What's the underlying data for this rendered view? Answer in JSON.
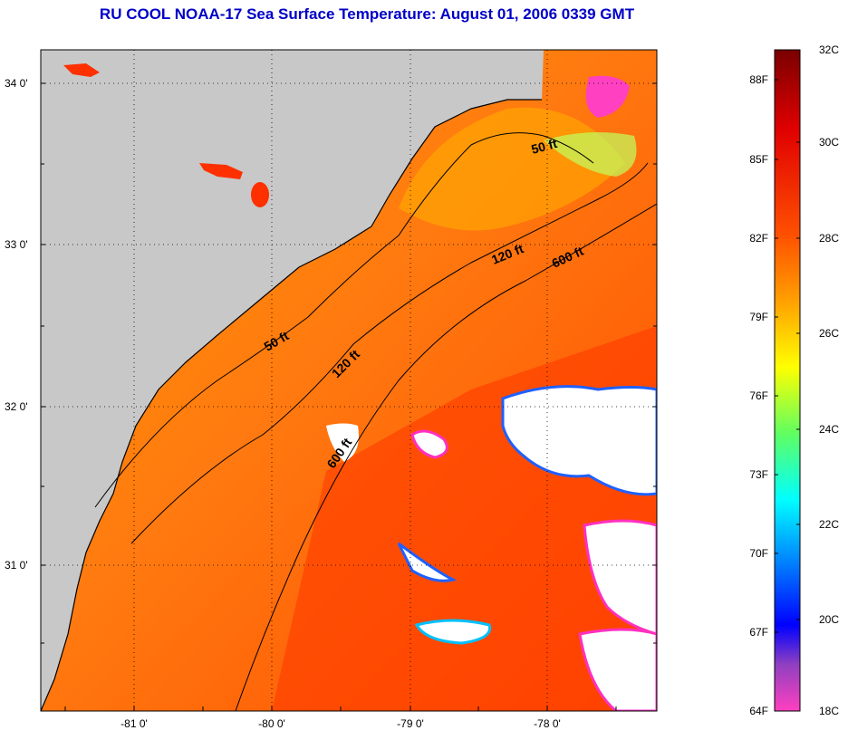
{
  "title": "RU COOL  NOAA-17  Sea Surface Temperature:  August 01, 2006 0339 GMT",
  "colors": {
    "land": "#c8c8c8",
    "cloud": "#ffffff",
    "sea_warm": "#ff4a00",
    "sea_mid": "#ff8c00",
    "coastline": "#000000"
  },
  "axes": {
    "lat_labels": [
      "34 0'",
      "33 0'",
      "32 0'",
      "31 0'"
    ],
    "lon_labels": [
      "-81 0'",
      "-80 0'",
      "-79 0'",
      "-78 0'"
    ]
  },
  "contours": [
    {
      "name": "50ft-north",
      "label": "50 ft"
    },
    {
      "name": "50ft-south",
      "label": "50 ft"
    },
    {
      "name": "120ft-north",
      "label": "120 ft"
    },
    {
      "name": "120ft-south",
      "label": "120 ft"
    },
    {
      "name": "600ft-north",
      "label": "600 ft"
    },
    {
      "name": "600ft-south",
      "label": "600 ft"
    }
  ],
  "colorbar": {
    "fahrenheit": [
      "88F",
      "85F",
      "82F",
      "79F",
      "76F",
      "73F",
      "70F",
      "67F",
      "64F"
    ],
    "celsius": [
      "32C",
      "30C",
      "28C",
      "26C",
      "24C",
      "22C",
      "20C",
      "18C"
    ]
  }
}
